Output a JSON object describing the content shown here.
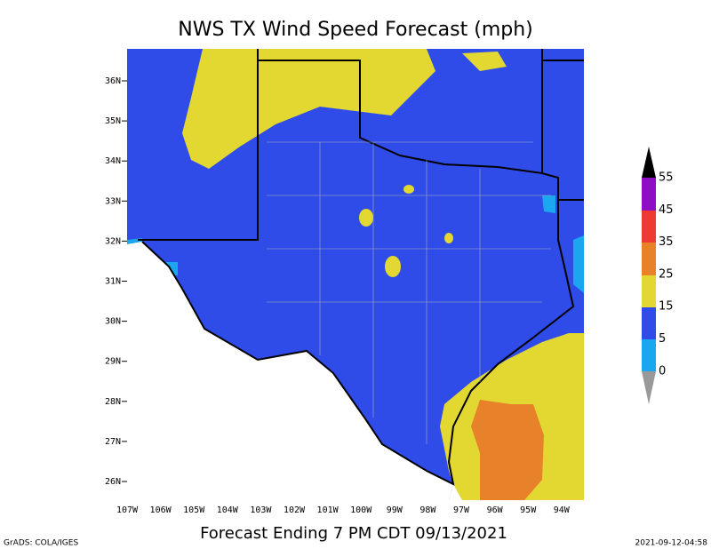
{
  "header": {
    "title": "NWS TX Wind Speed Forecast (mph)"
  },
  "footer": {
    "caption": "Forecast Ending 7 PM CDT 09/13/2021",
    "credit": "GrADS: COLA/IGES",
    "timestamp": "2021-09-12-04:58"
  },
  "axes": {
    "latitude_labels": [
      "36N",
      "35N",
      "34N",
      "33N",
      "32N",
      "31N",
      "30N",
      "29N",
      "28N",
      "27N",
      "26N"
    ],
    "longitude_labels": [
      "107W",
      "106W",
      "105W",
      "104W",
      "103W",
      "102W",
      "101W",
      "100W",
      "99W",
      "98W",
      "97W",
      "96W",
      "95W",
      "94W"
    ]
  },
  "colorbar": {
    "levels": [
      55,
      45,
      35,
      25,
      15,
      5,
      0
    ]
  }
}
